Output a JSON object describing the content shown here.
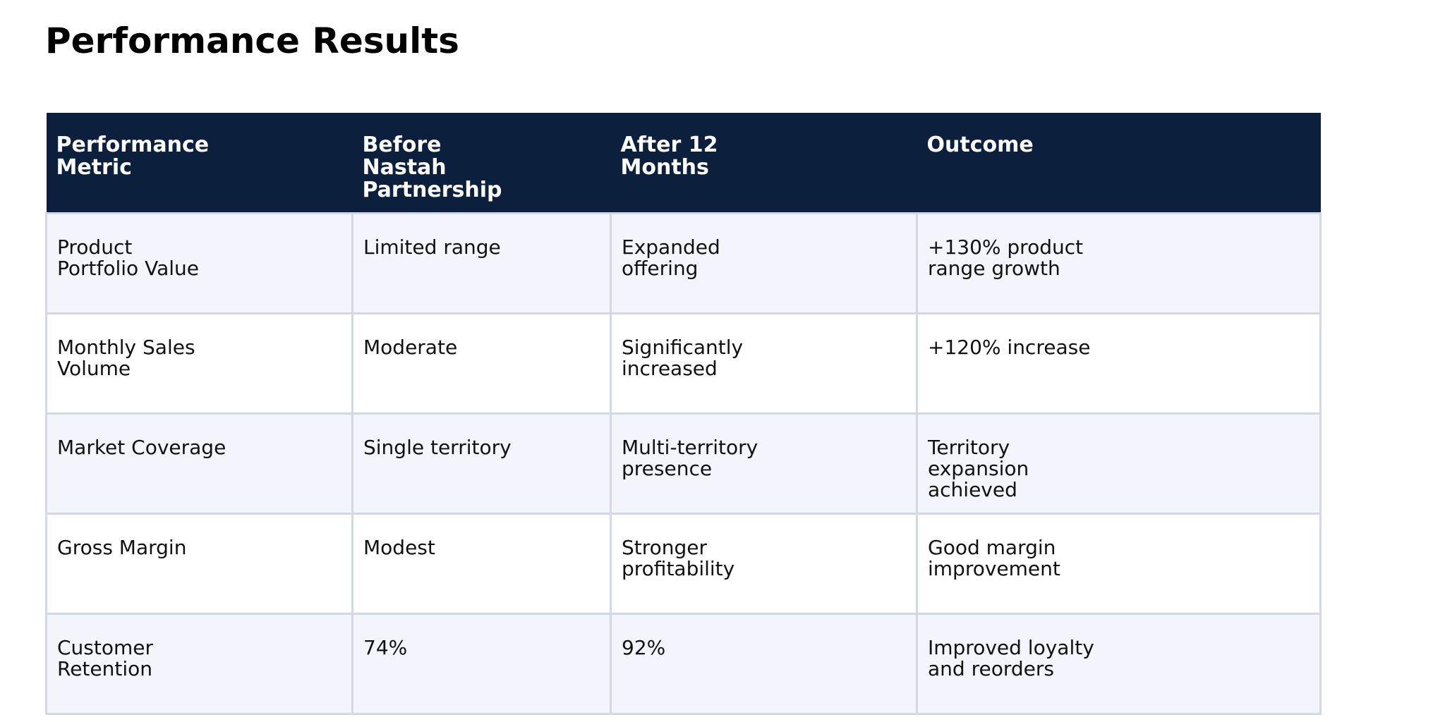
{
  "page": {
    "title": "Performance Results"
  },
  "table": {
    "headers": [
      "Performance\nMetric",
      "Before\nNastah\nPartnership",
      "After 12\nMonths",
      "Outcome"
    ],
    "rows": [
      [
        "Product\nPortfolio Value",
        "Limited range",
        "Expanded\noffering",
        "+130% product\nrange growth"
      ],
      [
        "Monthly Sales\nVolume",
        "Moderate",
        "Significantly\nincreased",
        "+120% increase"
      ],
      [
        "Market Coverage",
        "Single territory",
        "Multi-territory\npresence",
        "Territory\nexpansion\nachieved"
      ],
      [
        "Gross Margin",
        "Modest",
        "Stronger\nprofitability",
        "Good margin\nimprovement"
      ],
      [
        "Customer\nRetention",
        "74%",
        "92%",
        "Improved loyalty\nand reorders"
      ]
    ]
  },
  "colors": {
    "header_background": "#0c1f3c",
    "header_text": "#ffffff",
    "row_alt_background": "#f2f5fb",
    "border": "#d2d8e4"
  }
}
